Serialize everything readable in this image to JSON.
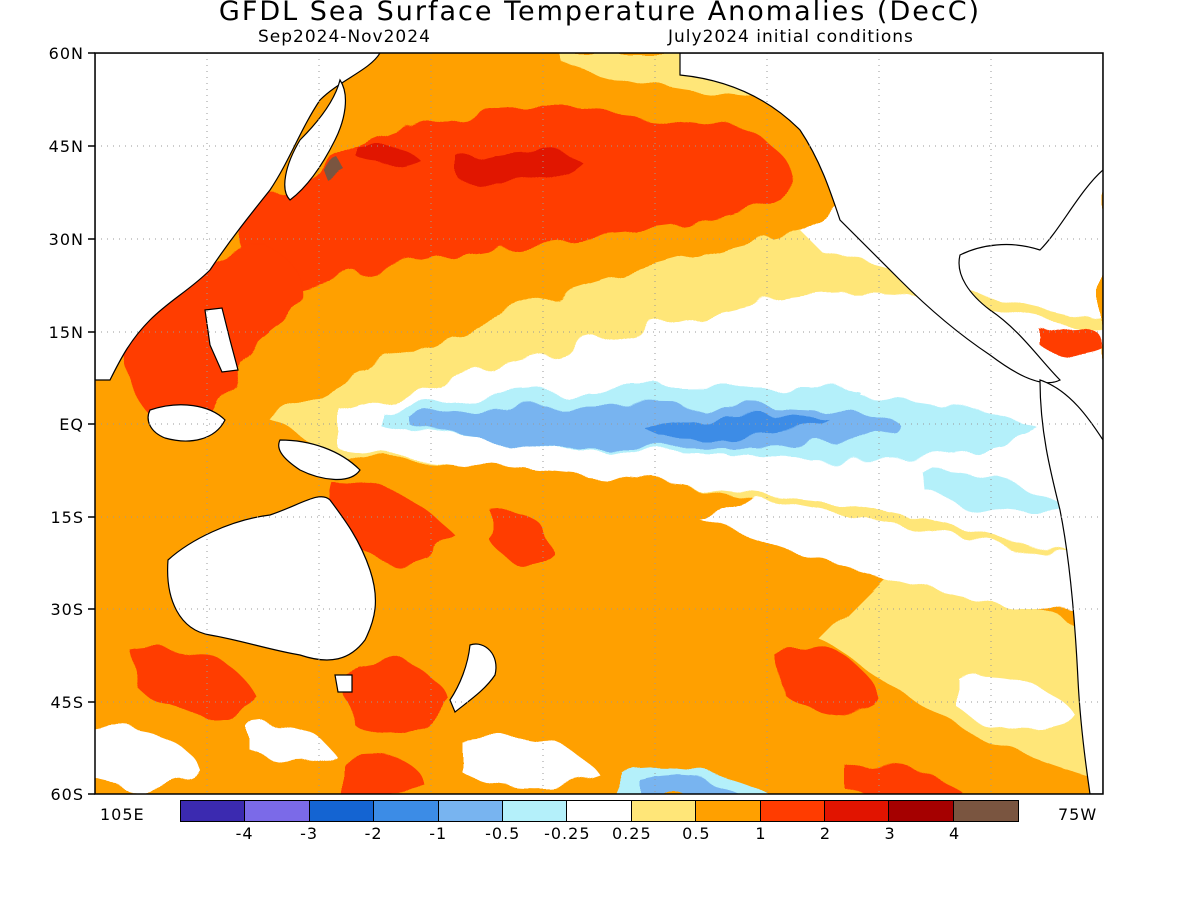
{
  "title": "GFDL Sea Surface Temperature Anomalies (DecC)",
  "subtitle_left": "Sep2024-Nov2024",
  "subtitle_right": "July2024 initial conditions",
  "lat_labels": [
    "60N",
    "45N",
    "30N",
    "15N",
    "EQ",
    "15S",
    "30S",
    "45S",
    "60S"
  ],
  "lon_labels": {
    "left": "105E",
    "right": "75W"
  },
  "colorbar": {
    "colors": [
      "#3b2ab0",
      "#7b6ae8",
      "#1464d2",
      "#3c8ce6",
      "#78b4f0",
      "#b4f0fa",
      "#ffffff",
      "#ffe678",
      "#ffa000",
      "#ff3c00",
      "#e11400",
      "#a50000",
      "#7a5540"
    ],
    "labels": [
      "-4",
      "-3",
      "-2",
      "-1",
      "-0.5",
      "-0.25",
      "0.25",
      "0.5",
      "1",
      "2",
      "3",
      "4"
    ]
  },
  "map_colors": {
    "land": "#ffffff",
    "coast": "#000000",
    "grid": "#9a9a9a"
  }
}
